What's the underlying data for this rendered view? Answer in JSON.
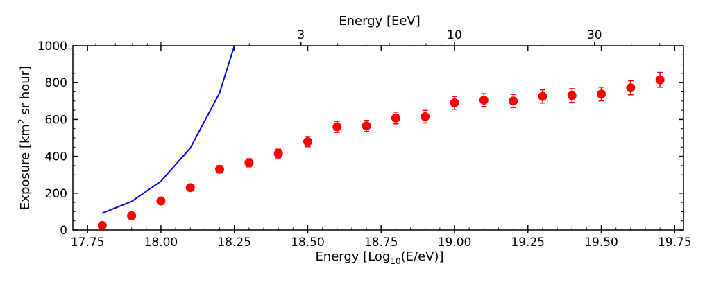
{
  "chart_data": {
    "type": "scatter",
    "xlabel_prefix": "Energy [Log",
    "xlabel_sub": "10",
    "xlabel_suffix": "(E/eV)]",
    "ylabel_prefix": "Exposure [km",
    "ylabel_sup": "2",
    "ylabel_suffix": " sr hour]",
    "top_xlabel": "Energy [EeV]",
    "xlim": [
      17.7,
      19.78
    ],
    "ylim": [
      0,
      1000
    ],
    "x_ticks": [
      17.75,
      18.0,
      18.25,
      18.5,
      18.75,
      19.0,
      19.25,
      19.5,
      19.75
    ],
    "x_tick_labels": [
      "17.75",
      "18.00",
      "18.25",
      "18.50",
      "18.75",
      "19.00",
      "19.25",
      "19.50",
      "19.75"
    ],
    "y_ticks": [
      0,
      200,
      400,
      600,
      800,
      1000
    ],
    "y_tick_labels": [
      "0",
      "200",
      "400",
      "600",
      "800",
      "1000"
    ],
    "top_ticks": [
      {
        "log_e": 18.477,
        "label": "3"
      },
      {
        "log_e": 19.0,
        "label": "10"
      },
      {
        "log_e": 19.477,
        "label": "30"
      }
    ],
    "series": [
      {
        "name": "exposure-points",
        "kind": "errorbar",
        "color": "#ff0000",
        "x": [
          17.8,
          17.9,
          18.0,
          18.1,
          18.2,
          18.3,
          18.4,
          18.5,
          18.6,
          18.7,
          18.8,
          18.9,
          19.0,
          19.1,
          19.2,
          19.3,
          19.4,
          19.5,
          19.6,
          19.7
        ],
        "y": [
          25,
          78,
          158,
          230,
          330,
          365,
          415,
          480,
          560,
          565,
          608,
          615,
          690,
          705,
          700,
          725,
          730,
          738,
          772,
          815
        ],
        "yerr": [
          8,
          10,
          12,
          15,
          20,
          22,
          24,
          28,
          30,
          30,
          32,
          34,
          35,
          35,
          36,
          36,
          37,
          37,
          38,
          40
        ]
      },
      {
        "name": "exposure-curve",
        "kind": "line",
        "color": "#0000dd",
        "x": [
          17.8,
          17.9,
          18.0,
          18.1,
          18.2,
          18.25
        ],
        "y": [
          92,
          155,
          265,
          445,
          745,
          1000
        ]
      }
    ]
  }
}
